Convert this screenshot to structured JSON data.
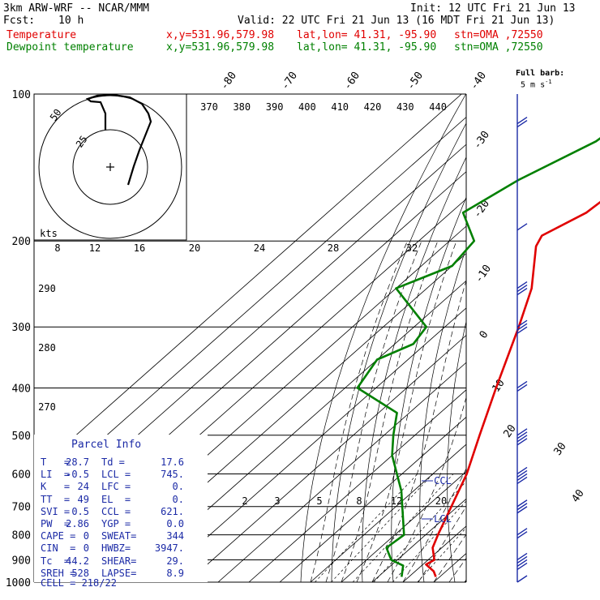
{
  "header": {
    "model": "3km ARW-WRF -- NCAR/MMM",
    "init": "Init: 12 UTC Fri 21 Jun 13",
    "fcst_label": "Fcst:",
    "fcst_value": "10 h",
    "valid": "Valid: 22 UTC Fri 21 Jun 13 (16 MDT Fri 21 Jun 13)",
    "temp_line": {
      "label": "Temperature",
      "xy": "x,y=531.96,579.98",
      "latlon": "lat,lon= 41.31, -95.90",
      "stn": "stn=OMA ,72550"
    },
    "dewp_line": {
      "label": "Dewpoint temperature",
      "xy": "x,y=531.96,579.98",
      "latlon": "lat,lon= 41.31, -95.90",
      "stn": "stn=OMA ,72550"
    },
    "barb_title": "Full barb:",
    "barb_unit": "5 m s",
    "barb_exp": "-1"
  },
  "chart_data": {
    "type": "line",
    "chart_kind": "skew-T log-P",
    "pressure_levels": [
      100,
      200,
      300,
      400,
      500,
      600,
      700,
      800,
      900,
      1000
    ],
    "temp_ticks_top": [
      "-80",
      "-70",
      "-60",
      "-50",
      "-40"
    ],
    "temp_ticks_right": [
      "-30",
      "-20",
      "-10",
      "0",
      "10",
      "20",
      "30",
      "40"
    ],
    "theta_labels": [
      "370",
      "380",
      "390",
      "400",
      "410",
      "420",
      "430",
      "440"
    ],
    "theta_labels_left": [
      "290",
      "280",
      "270"
    ],
    "mixing_ratio_labels": [
      "2",
      "3",
      "5",
      "8",
      "12",
      "20"
    ],
    "series": [
      {
        "name": "Temperature",
        "color": "#e00000",
        "points": [
          [
            100,
            -62
          ],
          [
            150,
            -54
          ],
          [
            175,
            -56
          ],
          [
            195,
            -62
          ],
          [
            205,
            -60
          ],
          [
            250,
            -46
          ],
          [
            300,
            -36
          ],
          [
            400,
            -21
          ],
          [
            500,
            -9
          ],
          [
            600,
            1
          ],
          [
            700,
            8
          ],
          [
            800,
            14
          ],
          [
            850,
            17
          ],
          [
            900,
            22
          ],
          [
            920,
            21
          ],
          [
            950,
            26
          ],
          [
            975,
            28.7
          ]
        ]
      },
      {
        "name": "Dewpoint temperature",
        "color": "#008000",
        "points": [
          [
            100,
            -75
          ],
          [
            125,
            -79
          ],
          [
            150,
            -90
          ],
          [
            175,
            -96
          ],
          [
            200,
            -82
          ],
          [
            225,
            -80
          ],
          [
            250,
            -90
          ],
          [
            300,
            -66
          ],
          [
            325,
            -64
          ],
          [
            350,
            -70
          ],
          [
            400,
            -66
          ],
          [
            450,
            -44
          ],
          [
            500,
            -37
          ],
          [
            550,
            -30
          ],
          [
            650,
            -14
          ],
          [
            800,
            3
          ],
          [
            850,
            2
          ],
          [
            900,
            8
          ],
          [
            925,
            14
          ],
          [
            975,
            17.6
          ]
        ]
      }
    ],
    "ccl_label": "CCL",
    "lcl_label": "LCL",
    "hodograph": {
      "unit": "kts",
      "ring_labels": [
        "25",
        "50"
      ],
      "axis_labels": [
        "8",
        "12",
        "16",
        "20",
        "24",
        "28",
        "32"
      ]
    },
    "wind_barb_series": [
      {
        "p": 115,
        "speed_ms": 10
      },
      {
        "p": 190,
        "speed_ms": 5
      },
      {
        "p": 250,
        "speed_ms": 15
      },
      {
        "p": 300,
        "speed_ms": 15
      },
      {
        "p": 400,
        "speed_ms": 10
      },
      {
        "p": 500,
        "speed_ms": 20
      },
      {
        "p": 600,
        "speed_ms": 20
      },
      {
        "p": 700,
        "speed_ms": 15
      },
      {
        "p": 800,
        "speed_ms": 10
      },
      {
        "p": 900,
        "speed_ms": 20
      },
      {
        "p": 1000,
        "speed_ms": 5
      }
    ]
  },
  "parcel_info": {
    "title": "Parcel Info",
    "rows": [
      {
        "a": "T   =",
        "b": "28.7",
        "c": "Td =",
        "d": "17.6"
      },
      {
        "a": "LI  =",
        "b": "-0.5",
        "c": "LCL =",
        "d": "745."
      },
      {
        "a": "K   =",
        "b": "24",
        "c": "LFC =",
        "d": "0."
      },
      {
        "a": "TT  =",
        "b": "49",
        "c": "EL  =",
        "d": "0."
      },
      {
        "a": "SVI =",
        "b": "0.5",
        "c": "CCL =",
        "d": "621."
      },
      {
        "a": "PW  =",
        "b": "2.86",
        "c": "YGP =",
        "d": "0.0"
      },
      {
        "a": "CAPE =",
        "b": "0",
        "c": "SWEAT=",
        "d": "344"
      },
      {
        "a": "CIN  =",
        "b": "0",
        "c": "HWBZ=",
        "d": "3947."
      },
      {
        "a": "Tc  =",
        "b": "44.2",
        "c": "SHEAR=",
        "d": "29."
      },
      {
        "a": "SREH =",
        "b": "528",
        "c": "LAPSE=",
        "d": "8.9"
      }
    ],
    "cell": "CELL = 218/22"
  },
  "colors": {
    "temperature": "#e00000",
    "dewpoint": "#008000",
    "index_text": "#1b2aa6",
    "barbs": "#1b2aa6"
  }
}
